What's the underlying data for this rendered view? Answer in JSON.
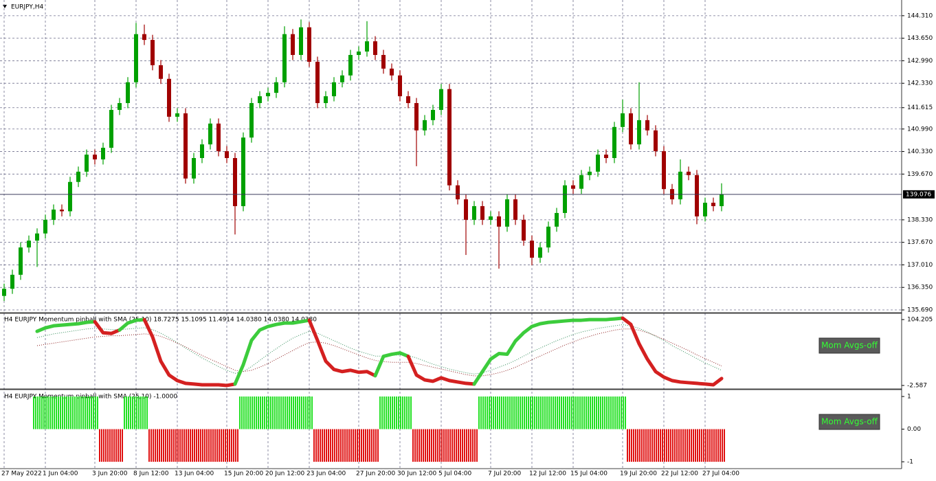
{
  "chart_data": [
    {
      "type": "candlestick",
      "title": "EURJPY,H4",
      "categories": [
        "27 May 2022",
        null,
        null,
        null,
        null,
        "1 Jun 04:00",
        null,
        null,
        null,
        null,
        null,
        "3 Jun 20:00",
        null,
        null,
        null,
        null,
        "8 Jun 12:00",
        null,
        null,
        null,
        null,
        "13 Jun 04:00",
        null,
        null,
        null,
        null,
        null,
        "15 Jun 20:00",
        null,
        null,
        null,
        null,
        "20 Jun 12:00",
        null,
        null,
        null,
        null,
        "23 Jun 04:00",
        null,
        null,
        null,
        null,
        null,
        "27 Jun 20:00",
        null,
        null,
        null,
        null,
        "30 Jun 12:00",
        null,
        null,
        null,
        null,
        "5 Jul 04:00",
        null,
        null,
        null,
        null,
        null,
        "7 Jul 20:00",
        null,
        null,
        null,
        null,
        "12 Jul 12:00",
        null,
        null,
        null,
        null,
        "15 Jul 04:00",
        null,
        null,
        null,
        null,
        null,
        "19 Jul 20:00",
        null,
        null,
        null,
        null,
        "22 Jul 12:00",
        null,
        null,
        null,
        null,
        "27 Jul 04:00",
        null,
        null
      ],
      "open": [
        136.1,
        136.31,
        136.72,
        137.52,
        137.72,
        137.93,
        138.33,
        138.63,
        138.58,
        139.44,
        139.74,
        140.24,
        140.1,
        140.44,
        141.55,
        141.75,
        142.36,
        143.77,
        143.6,
        142.86,
        142.46,
        141.35,
        141.45,
        139.54,
        140.14,
        140.54,
        141.15,
        140.34,
        140.14,
        138.73,
        140.74,
        141.75,
        141.95,
        142.05,
        142.36,
        143.77,
        143.16,
        143.97,
        142.96,
        141.75,
        141.95,
        142.36,
        142.56,
        143.16,
        143.26,
        143.56,
        143.16,
        142.76,
        142.56,
        141.95,
        141.75,
        140.95,
        141.25,
        141.55,
        142.16,
        139.34,
        138.93,
        138.33,
        138.73,
        138.33,
        138.43,
        138.13,
        138.93,
        138.33,
        137.72,
        137.22,
        137.52,
        138.13,
        138.53,
        139.34,
        139.24,
        139.64,
        139.74,
        140.24,
        140.14,
        141.05,
        141.45,
        140.54,
        141.25,
        140.95,
        140.34,
        139.23,
        138.93,
        139.74,
        139.64,
        138.43,
        138.83,
        138.73
      ],
      "high": [
        136.46,
        136.87,
        137.67,
        137.87,
        138.08,
        138.48,
        138.78,
        138.78,
        139.59,
        139.89,
        140.39,
        140.39,
        140.59,
        141.7,
        141.9,
        142.51,
        144.1,
        144.05,
        143.75,
        143.01,
        142.61,
        141.6,
        141.6,
        140.29,
        140.69,
        141.3,
        141.3,
        140.49,
        140.29,
        140.89,
        141.9,
        142.1,
        142.2,
        142.51,
        144.0,
        143.92,
        144.2,
        144.12,
        143.11,
        142.1,
        142.51,
        142.71,
        143.31,
        143.41,
        144.15,
        143.71,
        143.31,
        142.91,
        142.71,
        142.1,
        141.9,
        141.4,
        141.7,
        142.31,
        142.31,
        139.49,
        139.08,
        138.88,
        138.88,
        138.58,
        138.58,
        139.08,
        139.08,
        138.48,
        137.87,
        137.67,
        138.28,
        138.68,
        139.49,
        139.49,
        139.79,
        139.89,
        140.39,
        140.39,
        141.2,
        141.85,
        141.6,
        142.36,
        141.4,
        141.1,
        140.49,
        139.38,
        140.1,
        139.89,
        139.79,
        138.98,
        138.98,
        139.4
      ],
      "low": [
        135.95,
        136.16,
        136.57,
        137.37,
        136.95,
        137.78,
        138.18,
        138.43,
        138.43,
        139.29,
        139.59,
        139.95,
        139.95,
        140.29,
        141.4,
        141.6,
        142.21,
        143.45,
        142.71,
        142.31,
        141.2,
        141.2,
        139.39,
        139.39,
        139.99,
        140.39,
        140.19,
        139.99,
        137.9,
        138.58,
        140.59,
        141.6,
        141.8,
        141.9,
        142.21,
        143.01,
        143.01,
        142.81,
        141.6,
        141.6,
        141.8,
        142.21,
        142.41,
        143.01,
        143.11,
        143.01,
        142.61,
        142.41,
        141.8,
        141.6,
        139.9,
        140.8,
        141.1,
        141.4,
        139.19,
        138.78,
        137.3,
        138.18,
        138.18,
        138.18,
        136.9,
        137.98,
        138.18,
        137.57,
        137.0,
        137.07,
        137.37,
        137.98,
        138.38,
        139.09,
        139.09,
        139.49,
        139.59,
        139.99,
        139.99,
        140.9,
        140.39,
        140.39,
        140.8,
        140.19,
        139.08,
        138.78,
        138.78,
        139.49,
        138.2,
        138.28,
        138.58,
        138.58
      ],
      "close": [
        136.31,
        136.72,
        137.52,
        137.72,
        137.93,
        138.33,
        138.63,
        138.58,
        139.44,
        139.74,
        140.24,
        140.1,
        140.44,
        141.55,
        141.75,
        142.36,
        143.77,
        143.6,
        142.86,
        142.46,
        141.35,
        141.45,
        139.54,
        140.14,
        140.54,
        141.15,
        140.34,
        140.14,
        138.73,
        140.74,
        141.75,
        141.95,
        142.05,
        142.36,
        143.77,
        143.16,
        143.97,
        142.96,
        141.75,
        141.95,
        142.36,
        142.56,
        143.16,
        143.26,
        143.56,
        143.16,
        142.76,
        142.56,
        141.95,
        141.75,
        140.95,
        141.25,
        141.55,
        142.16,
        139.34,
        138.93,
        138.33,
        138.73,
        138.33,
        138.43,
        138.13,
        138.93,
        138.33,
        137.72,
        137.22,
        137.52,
        138.13,
        138.53,
        139.34,
        139.24,
        139.64,
        139.74,
        140.24,
        140.14,
        141.05,
        141.45,
        140.54,
        141.25,
        140.95,
        140.34,
        139.23,
        138.93,
        139.74,
        139.64,
        138.43,
        138.83,
        138.73,
        139.08
      ],
      "up_color": "#00a000",
      "down_color": "#a00000",
      "ylim": [
        135.61,
        144.77
      ],
      "yticks": [
        {
          "value": 144.31,
          "label": "144.310"
        },
        {
          "value": 143.65,
          "label": "143.650"
        },
        {
          "value": 142.99,
          "label": "142.990"
        },
        {
          "value": 142.33,
          "label": "142.330"
        },
        {
          "value": 141.615,
          "label": "141.615"
        },
        {
          "value": 140.99,
          "label": "140.990"
        },
        {
          "value": 140.33,
          "label": "140.330"
        },
        {
          "value": 139.67,
          "label": "139.670"
        },
        {
          "value": 138.33,
          "label": "138.330"
        },
        {
          "value": 137.67,
          "label": "137.670"
        },
        {
          "value": 137.01,
          "label": "137.010"
        },
        {
          "value": 136.35,
          "label": "136.350"
        },
        {
          "value": 135.69,
          "label": "135.690"
        }
      ],
      "grid": true,
      "last_price": 139.076
    },
    {
      "type": "line",
      "title": "H4 EURJPY Momentum pinball with SMA (25,10) 18.7275 15.1095 11.4914 14.0380 14.0380 14.0380",
      "values": [
        null,
        null,
        null,
        null,
        85.1,
        90.7,
        94.1,
        95.2,
        96.3,
        97.5,
        99.7,
        100.8,
        82.8,
        81.7,
        87.3,
        98.6,
        103.1,
        104.2,
        76.1,
        36.8,
        14.3,
        5.3,
        0.8,
        -0.3,
        -1.5,
        -1.5,
        -1.5,
        -2.6,
        -0.3,
        31.1,
        70.5,
        87.3,
        93.0,
        96.3,
        98.6,
        98.6,
        100.8,
        103.1,
        70.5,
        36.8,
        23.3,
        19.9,
        22.1,
        18.8,
        19.9,
        13.2,
        44.6,
        48.0,
        50.2,
        44.6,
        14.3,
        6.4,
        4.2,
        9.8,
        5.3,
        3.0,
        0.8,
        -0.3,
        19.9,
        40.1,
        49.1,
        48.0,
        69.4,
        82.8,
        93.0,
        97.5,
        99.7,
        100.8,
        102.0,
        103.1,
        103.1,
        104.2,
        104.2,
        104.2,
        105.3,
        106.5,
        96.3,
        64.9,
        40.1,
        19.9,
        10.9,
        5.3,
        3.0,
        1.9,
        0.8,
        -0.3,
        -1.5,
        8.7
      ],
      "up_color": "#3ccc3c",
      "down_color": "#d42020",
      "averages": [
        {
          "color": "#2e8b57",
          "values": [
            null,
            null,
            null,
            null,
            75,
            78,
            81,
            83,
            85,
            87,
            89,
            90,
            89,
            88,
            88,
            89,
            90,
            91,
            88,
            82,
            75,
            67,
            58,
            50,
            42,
            35,
            28,
            22,
            17,
            20,
            28,
            38,
            48,
            57,
            66,
            74,
            80,
            85,
            82,
            76,
            70,
            64,
            58,
            53,
            49,
            45,
            45,
            46,
            47,
            46,
            42,
            37,
            32,
            28,
            24,
            21,
            18,
            16,
            18,
            22,
            27,
            32,
            38,
            45,
            52,
            58,
            64,
            70,
            75,
            80,
            84,
            87,
            90,
            92,
            94,
            96,
            94,
            90,
            84,
            77,
            70,
            62,
            55,
            48,
            41,
            34,
            28,
            22
          ]
        },
        {
          "color": "#8b1a1a",
          "values": [
            null,
            null,
            null,
            null,
            62,
            64,
            66,
            68,
            70,
            72,
            74,
            76,
            77,
            78,
            78,
            79,
            80,
            81,
            80,
            77,
            72,
            66,
            60,
            53,
            46,
            40,
            34,
            28,
            22,
            20,
            22,
            27,
            33,
            40,
            47,
            54,
            61,
            67,
            68,
            66,
            62,
            57,
            52,
            47,
            42,
            38,
            36,
            35,
            35,
            35,
            33,
            30,
            27,
            24,
            21,
            18,
            15,
            13,
            13,
            15,
            18,
            22,
            27,
            33,
            39,
            45,
            51,
            57,
            63,
            68,
            73,
            77,
            81,
            84,
            87,
            89,
            89,
            87,
            83,
            78,
            72,
            66,
            60,
            54,
            47,
            41,
            35,
            29
          ]
        }
      ],
      "ylim": [
        -8.2,
        113.2
      ],
      "yticks": [
        104.205,
        -2.587
      ],
      "button": "Mom Avgs-off"
    },
    {
      "type": "bar",
      "title": "H4 EURJPY Momentum pinball with SMA (25,10) -1.0000",
      "values": [
        null,
        null,
        null,
        null,
        1,
        1,
        1,
        1,
        1,
        1,
        1,
        1,
        -1,
        -1,
        -1,
        1,
        1,
        1,
        -1,
        -1,
        -1,
        -1,
        -1,
        -1,
        -1,
        -1,
        -1,
        -1,
        -1,
        1,
        1,
        1,
        1,
        1,
        1,
        1,
        1,
        1,
        -1,
        -1,
        -1,
        -1,
        -1,
        -1,
        -1,
        -1,
        1,
        1,
        1,
        1,
        -1,
        -1,
        -1,
        -1,
        -1,
        -1,
        -1,
        -1,
        1,
        1,
        1,
        1,
        1,
        1,
        1,
        1,
        1,
        1,
        1,
        1,
        1,
        1,
        1,
        1,
        1,
        1,
        -1,
        -1,
        -1,
        -1,
        -1,
        -1,
        -1,
        -1,
        -1,
        -1,
        -1,
        -1
      ],
      "up_color": "#22e022",
      "down_color": "#e01010",
      "ylim": [
        -1.21,
        1.19
      ],
      "yticks": [
        1,
        {
          "value": 0,
          "label": "0.00"
        },
        -1
      ],
      "button": "Mom Avgs-off"
    }
  ]
}
